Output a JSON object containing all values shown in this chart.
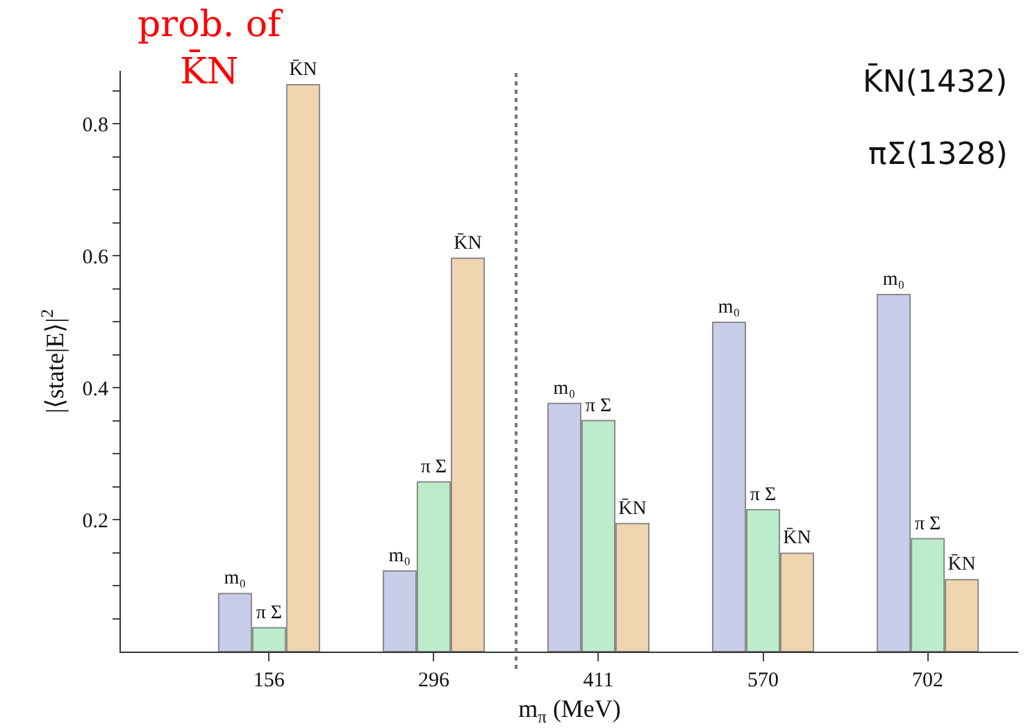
{
  "chart_data": {
    "type": "bar",
    "xlabel": "m$_{π}$ (MeV)",
    "ylabel": "|⟨state|E⟩|$^{2}$",
    "categories": [
      "156",
      "296",
      "411",
      "570",
      "702"
    ],
    "series": [
      {
        "name": "m₀",
        "color": "#c8cdea",
        "values": [
          0.088,
          0.122,
          0.376,
          0.499,
          0.541
        ]
      },
      {
        "name": "π Σ",
        "color": "#bdeccb",
        "values": [
          0.036,
          0.257,
          0.35,
          0.215,
          0.171
        ]
      },
      {
        "name": "K̄N",
        "color": "#efd5b0",
        "values": [
          0.859,
          0.596,
          0.194,
          0.149,
          0.109
        ]
      }
    ],
    "ylim": [
      0,
      0.88
    ],
    "yticks": [
      {
        "value": 0.05,
        "label": null
      },
      {
        "value": 0.1,
        "label": null
      },
      {
        "value": 0.15,
        "label": null
      },
      0.2,
      {
        "value": 0.25,
        "label": null
      },
      {
        "value": 0.3,
        "label": null
      },
      {
        "value": 0.35,
        "label": null
      },
      0.4,
      {
        "value": 0.45,
        "label": null
      },
      {
        "value": 0.5,
        "label": null
      },
      {
        "value": 0.55,
        "label": null
      },
      0.6,
      {
        "value": 0.65,
        "label": null
      },
      {
        "value": 0.7,
        "label": null
      },
      {
        "value": 0.75,
        "label": null
      },
      0.8,
      {
        "value": 0.85,
        "label": null
      }
    ],
    "grid": false,
    "legend": false,
    "annotations": [
      "prob. of\nK̄N",
      "K̄N(1432)",
      "πΣ(1328)"
    ]
  }
}
